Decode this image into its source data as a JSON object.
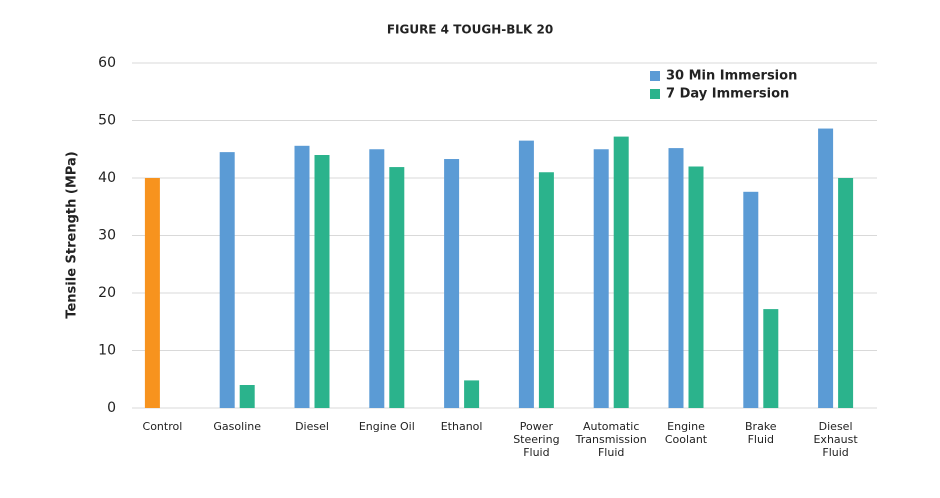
{
  "chart_data": {
    "type": "bar",
    "title": "FIGURE 4 TOUGH-BLK 20",
    "y_label": "Tensile Strength (MPa)",
    "categories": [
      [
        "Control"
      ],
      [
        "Gasoline"
      ],
      [
        "Diesel"
      ],
      [
        "Engine Oil"
      ],
      [
        "Ethanol"
      ],
      [
        "Power",
        "Steering",
        "Fluid"
      ],
      [
        "Automatic",
        "Transmission",
        "Fluid"
      ],
      [
        "Engine",
        "Coolant"
      ],
      [
        "Brake",
        "Fluid"
      ],
      [
        "Diesel",
        "Exhaust",
        "Fluid"
      ]
    ],
    "series": [
      {
        "name": "30 Min Immersion",
        "color": "#5b9bd5",
        "values": [
          null,
          44.5,
          45.6,
          45,
          43.3,
          46.5,
          45,
          45.2,
          37.6,
          48.6
        ]
      },
      {
        "name": "7 Day Immersion",
        "color": "#2bb38c",
        "values": [
          null,
          4,
          44,
          41.9,
          4.8,
          41,
          47.2,
          42,
          17.2,
          40
        ]
      }
    ],
    "baseline": {
      "color": "#f7931e",
      "values": [
        40,
        null,
        null,
        null,
        null,
        null,
        null,
        null,
        null,
        null
      ]
    },
    "ylim": [
      0,
      60
    ],
    "yticks": [
      0,
      10,
      20,
      30,
      40,
      50,
      60
    ],
    "grid": true,
    "legend": "top-right"
  }
}
